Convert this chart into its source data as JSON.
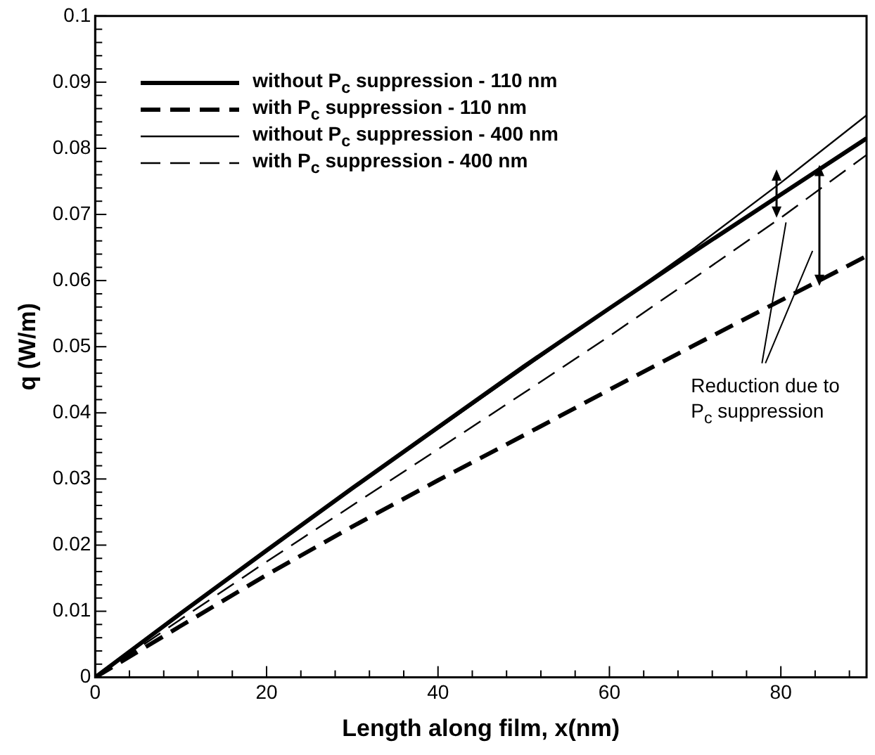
{
  "chart_data": {
    "type": "line",
    "xlabel": "Length along film, x(nm)",
    "ylabel": "q (W/m)",
    "xlim": [
      0,
      90
    ],
    "ylim": [
      0,
      0.1
    ],
    "xticks": [
      0,
      {
        "value": 4,
        "label": null
      },
      {
        "value": 8,
        "label": null
      },
      {
        "value": 12,
        "label": null
      },
      {
        "value": 16,
        "label": null
      },
      20,
      {
        "value": 24,
        "label": null
      },
      {
        "value": 28,
        "label": null
      },
      {
        "value": 32,
        "label": null
      },
      {
        "value": 36,
        "label": null
      },
      40,
      {
        "value": 44,
        "label": null
      },
      {
        "value": 48,
        "label": null
      },
      {
        "value": 52,
        "label": null
      },
      {
        "value": 56,
        "label": null
      },
      60,
      {
        "value": 64,
        "label": null
      },
      {
        "value": 68,
        "label": null
      },
      {
        "value": 72,
        "label": null
      },
      {
        "value": 76,
        "label": null
      },
      80,
      {
        "value": 84,
        "label": null
      },
      {
        "value": 88,
        "label": null
      }
    ],
    "yticks": [
      0,
      {
        "value": 0.002,
        "label": null
      },
      {
        "value": 0.004,
        "label": null
      },
      {
        "value": 0.006,
        "label": null
      },
      {
        "value": 0.008,
        "label": null
      },
      0.01,
      {
        "value": 0.012,
        "label": null
      },
      {
        "value": 0.014,
        "label": null
      },
      {
        "value": 0.016,
        "label": null
      },
      {
        "value": 0.018,
        "label": null
      },
      0.02,
      {
        "value": 0.022,
        "label": null
      },
      {
        "value": 0.024,
        "label": null
      },
      {
        "value": 0.026,
        "label": null
      },
      {
        "value": 0.028,
        "label": null
      },
      0.03,
      {
        "value": 0.032,
        "label": null
      },
      {
        "value": 0.034,
        "label": null
      },
      {
        "value": 0.036,
        "label": null
      },
      {
        "value": 0.038,
        "label": null
      },
      0.04,
      {
        "value": 0.042,
        "label": null
      },
      {
        "value": 0.044,
        "label": null
      },
      {
        "value": 0.046,
        "label": null
      },
      {
        "value": 0.048,
        "label": null
      },
      0.05,
      {
        "value": 0.052,
        "label": null
      },
      {
        "value": 0.054,
        "label": null
      },
      {
        "value": 0.056,
        "label": null
      },
      {
        "value": 0.058,
        "label": null
      },
      0.06,
      {
        "value": 0.062,
        "label": null
      },
      {
        "value": 0.064,
        "label": null
      },
      {
        "value": 0.066,
        "label": null
      },
      {
        "value": 0.068,
        "label": null
      },
      0.07,
      {
        "value": 0.072,
        "label": null
      },
      {
        "value": 0.074,
        "label": null
      },
      {
        "value": 0.076,
        "label": null
      },
      {
        "value": 0.078,
        "label": null
      },
      0.08,
      {
        "value": 0.082,
        "label": null
      },
      {
        "value": 0.084,
        "label": null
      },
      {
        "value": 0.086,
        "label": null
      },
      {
        "value": 0.088,
        "label": null
      },
      0.09,
      {
        "value": 0.092,
        "label": null
      },
      {
        "value": 0.094,
        "label": null
      },
      {
        "value": 0.096,
        "label": null
      },
      {
        "value": 0.098,
        "label": null
      },
      0.1
    ],
    "x": [
      0,
      10,
      20,
      30,
      40,
      50,
      60,
      70,
      80,
      90
    ],
    "grid": false,
    "legend": "top left",
    "marker": "none",
    "series": [
      {
        "name": "without P$_{c}$ suppression - 110 nm",
        "color": "#000000",
        "line_style": "solid",
        "values": [
          0,
          0.0097,
          0.0192,
          0.0286,
          0.0378,
          0.047,
          0.0558,
          0.0645,
          0.073,
          0.0815
        ]
      },
      {
        "name": "with P$_{c}$ suppression - 110 nm",
        "color": "#000000",
        "line_style": "dashed",
        "values": [
          0,
          0.0078,
          0.0155,
          0.0228,
          0.0298,
          0.0366,
          0.0435,
          0.0503,
          0.057,
          0.0637
        ]
      },
      {
        "name": "without P$_{c}$ suppression - 400 nm",
        "color": "#000000",
        "line_style": "solid",
        "values": [
          0,
          0.0097,
          0.0192,
          0.0285,
          0.0376,
          0.0467,
          0.0558,
          0.065,
          0.0748,
          0.085
        ]
      },
      {
        "name": "with P$_{c}$ suppression - 400 nm",
        "color": "#000000",
        "line_style": "dashed",
        "values": [
          0,
          0.0088,
          0.0175,
          0.026,
          0.0345,
          0.043,
          0.0516,
          0.0605,
          0.0695,
          0.079
        ]
      }
    ],
    "annotations": [
      "Reduction due to P$_{c}$ suppression"
    ]
  }
}
